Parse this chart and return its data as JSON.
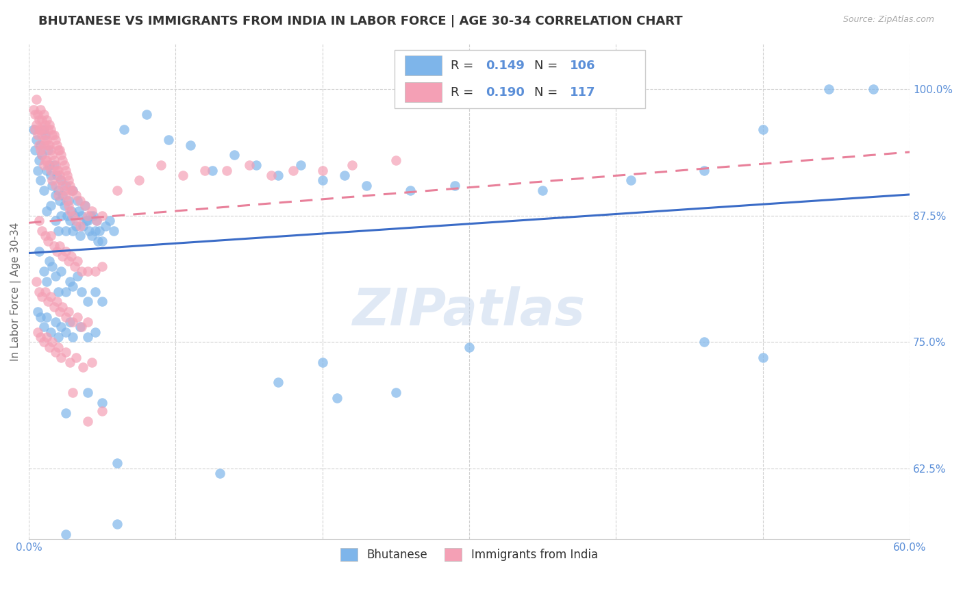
{
  "title": "BHUTANESE VS IMMIGRANTS FROM INDIA IN LABOR FORCE | AGE 30-34 CORRELATION CHART",
  "source": "Source: ZipAtlas.com",
  "ylabel": "In Labor Force | Age 30-34",
  "xlim": [
    0.0,
    0.6
  ],
  "ylim": [
    0.555,
    1.045
  ],
  "xticks": [
    0.0,
    0.1,
    0.2,
    0.3,
    0.4,
    0.5,
    0.6
  ],
  "xticklabels": [
    "0.0%",
    "",
    "",
    "",
    "",
    "",
    "60.0%"
  ],
  "ytick_right_vals": [
    1.0,
    0.875,
    0.75,
    0.625
  ],
  "ytick_right_labels": [
    "100.0%",
    "87.5%",
    "75.0%",
    "62.5%"
  ],
  "legend_r_blue": "0.149",
  "legend_n_blue": "106",
  "legend_r_pink": "0.190",
  "legend_n_pink": "117",
  "blue_color": "#7EB5EA",
  "pink_color": "#F4A0B5",
  "trend_blue": "#3B6CC7",
  "trend_pink": "#E8809A",
  "label_blue": "Bhutanese",
  "label_pink": "Immigrants from India",
  "watermark": "ZIPatlas",
  "watermark_color": "#C8D8EE",
  "title_fontsize": 13,
  "axis_label_color": "#5B8FD8",
  "blue_trend_x": [
    0.0,
    0.6
  ],
  "blue_trend_y": [
    0.838,
    0.896
  ],
  "pink_trend_x": [
    0.0,
    0.6
  ],
  "pink_trend_y": [
    0.868,
    0.938
  ],
  "blue_scatter": [
    [
      0.003,
      0.96
    ],
    [
      0.004,
      0.94
    ],
    [
      0.005,
      0.95
    ],
    [
      0.006,
      0.92
    ],
    [
      0.007,
      0.93
    ],
    [
      0.008,
      0.91
    ],
    [
      0.008,
      0.945
    ],
    [
      0.009,
      0.935
    ],
    [
      0.01,
      0.96
    ],
    [
      0.01,
      0.9
    ],
    [
      0.011,
      0.955
    ],
    [
      0.012,
      0.92
    ],
    [
      0.012,
      0.88
    ],
    [
      0.013,
      0.94
    ],
    [
      0.014,
      0.925
    ],
    [
      0.015,
      0.915
    ],
    [
      0.015,
      0.885
    ],
    [
      0.016,
      0.905
    ],
    [
      0.017,
      0.925
    ],
    [
      0.018,
      0.895
    ],
    [
      0.018,
      0.87
    ],
    [
      0.019,
      0.915
    ],
    [
      0.02,
      0.9
    ],
    [
      0.02,
      0.86
    ],
    [
      0.021,
      0.89
    ],
    [
      0.022,
      0.91
    ],
    [
      0.022,
      0.875
    ],
    [
      0.023,
      0.895
    ],
    [
      0.024,
      0.885
    ],
    [
      0.025,
      0.905
    ],
    [
      0.025,
      0.86
    ],
    [
      0.026,
      0.875
    ],
    [
      0.027,
      0.89
    ],
    [
      0.028,
      0.87
    ],
    [
      0.029,
      0.88
    ],
    [
      0.03,
      0.9
    ],
    [
      0.03,
      0.86
    ],
    [
      0.031,
      0.875
    ],
    [
      0.032,
      0.865
    ],
    [
      0.033,
      0.89
    ],
    [
      0.034,
      0.88
    ],
    [
      0.035,
      0.855
    ],
    [
      0.036,
      0.875
    ],
    [
      0.037,
      0.865
    ],
    [
      0.038,
      0.885
    ],
    [
      0.039,
      0.87
    ],
    [
      0.04,
      0.87
    ],
    [
      0.041,
      0.86
    ],
    [
      0.042,
      0.875
    ],
    [
      0.043,
      0.855
    ],
    [
      0.044,
      0.875
    ],
    [
      0.045,
      0.86
    ],
    [
      0.046,
      0.87
    ],
    [
      0.047,
      0.85
    ],
    [
      0.048,
      0.86
    ],
    [
      0.05,
      0.85
    ],
    [
      0.052,
      0.865
    ],
    [
      0.055,
      0.87
    ],
    [
      0.058,
      0.86
    ],
    [
      0.007,
      0.84
    ],
    [
      0.01,
      0.82
    ],
    [
      0.012,
      0.81
    ],
    [
      0.014,
      0.83
    ],
    [
      0.016,
      0.825
    ],
    [
      0.018,
      0.815
    ],
    [
      0.02,
      0.8
    ],
    [
      0.022,
      0.82
    ],
    [
      0.025,
      0.8
    ],
    [
      0.028,
      0.81
    ],
    [
      0.03,
      0.805
    ],
    [
      0.033,
      0.815
    ],
    [
      0.036,
      0.8
    ],
    [
      0.04,
      0.79
    ],
    [
      0.045,
      0.8
    ],
    [
      0.05,
      0.79
    ],
    [
      0.006,
      0.78
    ],
    [
      0.008,
      0.775
    ],
    [
      0.01,
      0.765
    ],
    [
      0.012,
      0.775
    ],
    [
      0.015,
      0.76
    ],
    [
      0.018,
      0.77
    ],
    [
      0.02,
      0.755
    ],
    [
      0.022,
      0.765
    ],
    [
      0.025,
      0.76
    ],
    [
      0.028,
      0.77
    ],
    [
      0.03,
      0.755
    ],
    [
      0.035,
      0.765
    ],
    [
      0.04,
      0.755
    ],
    [
      0.045,
      0.76
    ],
    [
      0.065,
      0.96
    ],
    [
      0.08,
      0.975
    ],
    [
      0.095,
      0.95
    ],
    [
      0.11,
      0.945
    ],
    [
      0.125,
      0.92
    ],
    [
      0.14,
      0.935
    ],
    [
      0.155,
      0.925
    ],
    [
      0.17,
      0.915
    ],
    [
      0.185,
      0.925
    ],
    [
      0.2,
      0.91
    ],
    [
      0.215,
      0.915
    ],
    [
      0.23,
      0.905
    ],
    [
      0.26,
      0.9
    ],
    [
      0.29,
      0.905
    ],
    [
      0.35,
      0.9
    ],
    [
      0.41,
      0.91
    ],
    [
      0.46,
      0.92
    ],
    [
      0.5,
      0.96
    ],
    [
      0.545,
      1.0
    ],
    [
      0.575,
      1.0
    ],
    [
      0.025,
      0.68
    ],
    [
      0.04,
      0.7
    ],
    [
      0.05,
      0.69
    ],
    [
      0.2,
      0.73
    ],
    [
      0.3,
      0.745
    ],
    [
      0.06,
      0.63
    ],
    [
      0.13,
      0.62
    ],
    [
      0.06,
      0.57
    ],
    [
      0.025,
      0.56
    ],
    [
      0.46,
      0.75
    ],
    [
      0.5,
      0.735
    ],
    [
      0.17,
      0.71
    ],
    [
      0.21,
      0.695
    ],
    [
      0.25,
      0.7
    ]
  ],
  "pink_scatter": [
    [
      0.003,
      0.98
    ],
    [
      0.004,
      0.975
    ],
    [
      0.004,
      0.96
    ],
    [
      0.005,
      0.99
    ],
    [
      0.005,
      0.965
    ],
    [
      0.006,
      0.975
    ],
    [
      0.006,
      0.955
    ],
    [
      0.007,
      0.97
    ],
    [
      0.007,
      0.96
    ],
    [
      0.007,
      0.945
    ],
    [
      0.008,
      0.98
    ],
    [
      0.008,
      0.96
    ],
    [
      0.008,
      0.94
    ],
    [
      0.009,
      0.97
    ],
    [
      0.009,
      0.955
    ],
    [
      0.009,
      0.935
    ],
    [
      0.01,
      0.975
    ],
    [
      0.01,
      0.96
    ],
    [
      0.01,
      0.945
    ],
    [
      0.01,
      0.925
    ],
    [
      0.011,
      0.965
    ],
    [
      0.011,
      0.95
    ],
    [
      0.011,
      0.93
    ],
    [
      0.012,
      0.97
    ],
    [
      0.012,
      0.95
    ],
    [
      0.012,
      0.93
    ],
    [
      0.013,
      0.96
    ],
    [
      0.013,
      0.945
    ],
    [
      0.013,
      0.925
    ],
    [
      0.014,
      0.965
    ],
    [
      0.014,
      0.945
    ],
    [
      0.015,
      0.96
    ],
    [
      0.015,
      0.94
    ],
    [
      0.015,
      0.92
    ],
    [
      0.016,
      0.955
    ],
    [
      0.016,
      0.935
    ],
    [
      0.016,
      0.91
    ],
    [
      0.017,
      0.955
    ],
    [
      0.017,
      0.93
    ],
    [
      0.018,
      0.95
    ],
    [
      0.018,
      0.925
    ],
    [
      0.018,
      0.905
    ],
    [
      0.019,
      0.945
    ],
    [
      0.019,
      0.92
    ],
    [
      0.02,
      0.94
    ],
    [
      0.02,
      0.92
    ],
    [
      0.02,
      0.895
    ],
    [
      0.021,
      0.94
    ],
    [
      0.021,
      0.915
    ],
    [
      0.022,
      0.935
    ],
    [
      0.022,
      0.91
    ],
    [
      0.023,
      0.93
    ],
    [
      0.023,
      0.905
    ],
    [
      0.024,
      0.925
    ],
    [
      0.024,
      0.9
    ],
    [
      0.025,
      0.92
    ],
    [
      0.025,
      0.895
    ],
    [
      0.026,
      0.915
    ],
    [
      0.026,
      0.89
    ],
    [
      0.027,
      0.91
    ],
    [
      0.027,
      0.885
    ],
    [
      0.028,
      0.905
    ],
    [
      0.028,
      0.88
    ],
    [
      0.029,
      0.9
    ],
    [
      0.03,
      0.9
    ],
    [
      0.03,
      0.875
    ],
    [
      0.032,
      0.895
    ],
    [
      0.032,
      0.87
    ],
    [
      0.035,
      0.89
    ],
    [
      0.035,
      0.865
    ],
    [
      0.038,
      0.885
    ],
    [
      0.04,
      0.875
    ],
    [
      0.043,
      0.88
    ],
    [
      0.046,
      0.87
    ],
    [
      0.05,
      0.875
    ],
    [
      0.007,
      0.87
    ],
    [
      0.009,
      0.86
    ],
    [
      0.011,
      0.855
    ],
    [
      0.013,
      0.85
    ],
    [
      0.015,
      0.855
    ],
    [
      0.017,
      0.845
    ],
    [
      0.019,
      0.84
    ],
    [
      0.021,
      0.845
    ],
    [
      0.023,
      0.835
    ],
    [
      0.025,
      0.84
    ],
    [
      0.027,
      0.83
    ],
    [
      0.029,
      0.835
    ],
    [
      0.031,
      0.825
    ],
    [
      0.033,
      0.83
    ],
    [
      0.036,
      0.82
    ],
    [
      0.04,
      0.82
    ],
    [
      0.045,
      0.82
    ],
    [
      0.05,
      0.825
    ],
    [
      0.005,
      0.81
    ],
    [
      0.007,
      0.8
    ],
    [
      0.009,
      0.795
    ],
    [
      0.011,
      0.8
    ],
    [
      0.013,
      0.79
    ],
    [
      0.015,
      0.795
    ],
    [
      0.017,
      0.785
    ],
    [
      0.019,
      0.79
    ],
    [
      0.021,
      0.78
    ],
    [
      0.023,
      0.785
    ],
    [
      0.025,
      0.775
    ],
    [
      0.027,
      0.78
    ],
    [
      0.03,
      0.77
    ],
    [
      0.033,
      0.775
    ],
    [
      0.036,
      0.765
    ],
    [
      0.04,
      0.77
    ],
    [
      0.006,
      0.76
    ],
    [
      0.008,
      0.755
    ],
    [
      0.01,
      0.75
    ],
    [
      0.012,
      0.755
    ],
    [
      0.014,
      0.745
    ],
    [
      0.016,
      0.75
    ],
    [
      0.018,
      0.74
    ],
    [
      0.02,
      0.745
    ],
    [
      0.022,
      0.735
    ],
    [
      0.025,
      0.74
    ],
    [
      0.028,
      0.73
    ],
    [
      0.032,
      0.735
    ],
    [
      0.037,
      0.725
    ],
    [
      0.043,
      0.73
    ],
    [
      0.06,
      0.9
    ],
    [
      0.075,
      0.91
    ],
    [
      0.09,
      0.925
    ],
    [
      0.105,
      0.915
    ],
    [
      0.12,
      0.92
    ],
    [
      0.135,
      0.92
    ],
    [
      0.15,
      0.925
    ],
    [
      0.165,
      0.915
    ],
    [
      0.18,
      0.92
    ],
    [
      0.2,
      0.92
    ],
    [
      0.22,
      0.925
    ],
    [
      0.25,
      0.93
    ],
    [
      0.03,
      0.7
    ],
    [
      0.04,
      0.672
    ],
    [
      0.05,
      0.682
    ]
  ]
}
